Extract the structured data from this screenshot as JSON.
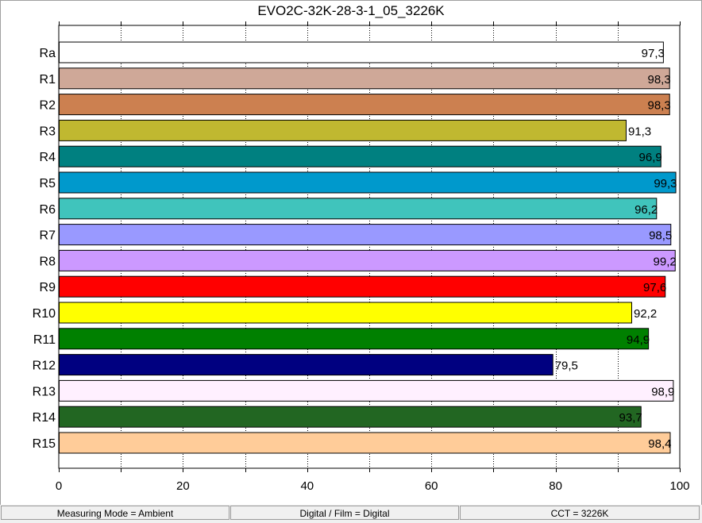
{
  "chart_data": {
    "type": "bar",
    "orientation": "horizontal",
    "title": "EVO2C-32K-28-3-1_05_3226K",
    "xlim": [
      0,
      100
    ],
    "x_ticks": [
      0,
      20,
      40,
      60,
      80,
      100
    ],
    "grid": true,
    "categories": [
      "Ra",
      "R1",
      "R2",
      "R3",
      "R4",
      "R5",
      "R6",
      "R7",
      "R8",
      "R9",
      "R10",
      "R11",
      "R12",
      "R13",
      "R14",
      "R15"
    ],
    "values": [
      97.3,
      98.3,
      98.3,
      91.3,
      96.9,
      99.3,
      96.2,
      98.5,
      99.2,
      97.6,
      92.2,
      94.9,
      79.5,
      98.9,
      93.7,
      98.4
    ],
    "value_labels": [
      "97,3",
      "98,3",
      "98,3",
      "91,3",
      "96,9",
      "99,3",
      "96,2",
      "98,5",
      "99,2",
      "97,6",
      "92,2",
      "94,9",
      "79,5",
      "98,9",
      "93,7",
      "98,4"
    ],
    "colors": [
      "#ffffff",
      "#cfa898",
      "#cc8050",
      "#c0b830",
      "#008080",
      "#0099cc",
      "#40c4bc",
      "#9999ff",
      "#cc99ff",
      "#ff0000",
      "#ffff00",
      "#008000",
      "#000080",
      "#fff0ff",
      "#226622",
      "#ffcc99"
    ]
  },
  "statusbar": {
    "measuring_mode": "Measuring Mode = Ambient",
    "digital_film": "Digital / Film = Digital",
    "cct": "CCT = 3226K"
  }
}
